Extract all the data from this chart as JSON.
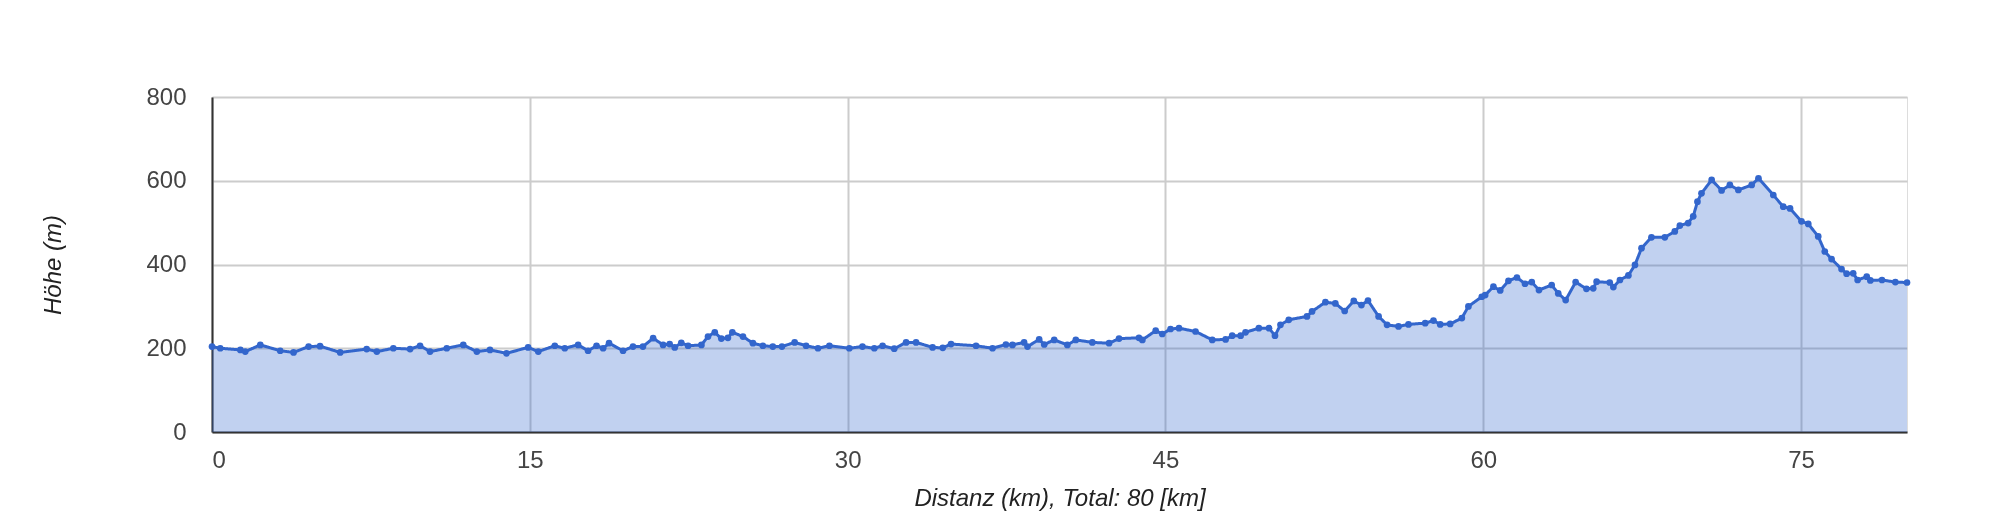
{
  "chart_data": {
    "type": "area",
    "xlabel": "Distanz (km), Total: 80 [km]",
    "ylabel": "Höhe (m)",
    "x": [
      0,
      0.39,
      1.34,
      1.57,
      2.28,
      3.22,
      3.85,
      4.56,
      5.1,
      6.05,
      7.3,
      7.78,
      8.56,
      9.35,
      9.82,
      10.29,
      11.08,
      11.86,
      12.5,
      13.12,
      13.9,
      14.92,
      15.4,
      16.18,
      16.65,
      17.28,
      17.75,
      18.15,
      18.46,
      18.74,
      19.4,
      19.87,
      20.34,
      20.82,
      21.29,
      21.6,
      21.84,
      22.15,
      22.47,
      23.1,
      23.41,
      23.73,
      24.04,
      24.35,
      24.56,
      25.06,
      25.53,
      26.0,
      26.47,
      26.9,
      27.5,
      28.04,
      28.6,
      29.14,
      30.08,
      30.7,
      31.26,
      31.65,
      32.2,
      32.76,
      33.23,
      34.01,
      34.49,
      34.88,
      36.06,
      36.84,
      37.47,
      37.78,
      38.33,
      38.49,
      39.04,
      39.28,
      39.75,
      40.37,
      40.77,
      41.55,
      42.34,
      42.81,
      43.75,
      43.91,
      44.54,
      44.85,
      45.24,
      45.64,
      46.42,
      47.21,
      47.84,
      48.15,
      48.55,
      48.78,
      49.41,
      49.89,
      50.17,
      50.43,
      50.82,
      51.68,
      51.92,
      52.55,
      53.02,
      53.46,
      53.89,
      54.25,
      54.56,
      55.06,
      55.46,
      56.0,
      56.47,
      57.26,
      57.65,
      57.97,
      58.44,
      58.99,
      59.3,
      59.93,
      60.09,
      60.48,
      60.8,
      61.19,
      61.59,
      61.97,
      62.29,
      62.63,
      63.23,
      63.54,
      63.89,
      64.36,
      64.87,
      65.19,
      65.35,
      65.97,
      66.14,
      66.45,
      66.85,
      67.16,
      67.47,
      67.94,
      68.57,
      69.04,
      69.28,
      69.67,
      69.91,
      70.11,
      70.3,
      70.78,
      71.25,
      71.64,
      72.04,
      72.67,
      72.99,
      73.69,
      74.16,
      74.48,
      75.02,
      75.34,
      75.81,
      76.12,
      76.44,
      76.91,
      77.15,
      77.46,
      77.67,
      78.1,
      78.27,
      78.82,
      79.45,
      80
    ],
    "series": [
      {
        "color": "#3366cc",
        "values": [
          204,
          200,
          196,
          192,
          208,
          194,
          190,
          204,
          205,
          190,
          198,
          192,
          200,
          198,
          206,
          192,
          200,
          208,
          192,
          196,
          188,
          202,
          192,
          206,
          200,
          208,
          194,
          206,
          200,
          212,
          194,
          204,
          204,
          224,
          208,
          210,
          202,
          213,
          206,
          208,
          228,
          238,
          223,
          225,
          238,
          228,
          212,
          206,
          204,
          204,
          214,
          206,
          200,
          206,
          200,
          204,
          200,
          206,
          199,
          214,
          214,
          202,
          201,
          210,
          206,
          200,
          209,
          208,
          214,
          204,
          221,
          209,
          220,
          208,
          220,
          214,
          212,
          223,
          225,
          220,
          242,
          234,
          246,
          248,
          240,
          220,
          221,
          230,
          230,
          238,
          248,
          248,
          230,
          256,
          268,
          276,
          288,
          310,
          307,
          289,
          313,
          303,
          314,
          276,
          256,
          252,
          257,
          260,
          266,
          257,
          258,
          272,
          300,
          323,
          327,
          347,
          338,
          361,
          369,
          354,
          358,
          339,
          351,
          331,
          315,
          358,
          342,
          343,
          359,
          357,
          346,
          363,
          374,
          399,
          439,
          465,
          465,
          479,
          493,
          499,
          515,
          550,
          570,
          602,
          577,
          590,
          578,
          590,
          606,
          566,
          538,
          534,
          503,
          497,
          467,
          431,
          413,
          389,
          378,
          379,
          363,
          371,
          362,
          363,
          358,
          357
        ]
      }
    ],
    "xlim": [
      0,
      80
    ],
    "ylim": [
      0,
      800
    ],
    "xticks": [
      0,
      15,
      30,
      45,
      60,
      75
    ],
    "yticks": [
      0,
      200,
      400,
      600,
      800
    ],
    "grid": true,
    "legend": false,
    "marker": "circle",
    "line_style": "solid"
  }
}
